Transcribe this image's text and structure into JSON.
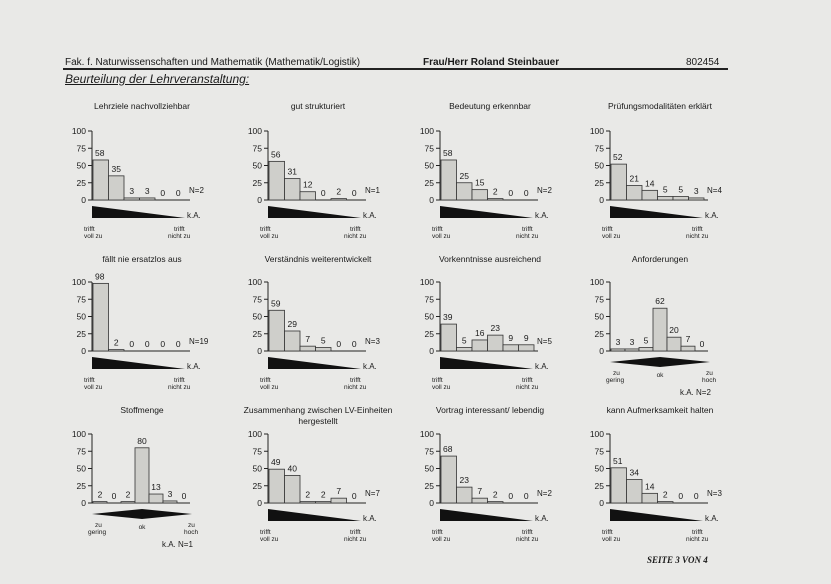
{
  "header": {
    "faculty": "Fak. f. Naturwissenschaften und Mathematik (Mathematik/Logistik)",
    "lecturer": "Frau/Herr Roland Steinbauer",
    "code": "802454",
    "section_title": "Beurteilung der Lehrveranstaltung:"
  },
  "footer": {
    "page": "SEITE 3 VON 4"
  },
  "chart_data": [
    {
      "type": "bar",
      "title": "Lehrziele nachvollziehbar",
      "values": [
        58,
        35,
        3,
        3,
        0,
        0
      ],
      "n_label": "N=2",
      "ka_label": "k.A.",
      "scale": "linear",
      "left_label": [
        "trifft",
        "voll zu"
      ],
      "right_label": [
        "trifft",
        "nicht zu"
      ],
      "ylim": [
        0,
        100
      ],
      "yticks": [
        0,
        25,
        50,
        75,
        100
      ]
    },
    {
      "type": "bar",
      "title": "gut strukturiert",
      "values": [
        56,
        31,
        12,
        0,
        2,
        0
      ],
      "n_label": "N=1",
      "ka_label": "k.A.",
      "scale": "linear",
      "left_label": [
        "trifft",
        "voll zu"
      ],
      "right_label": [
        "trifft",
        "nicht zu"
      ],
      "ylim": [
        0,
        100
      ],
      "yticks": [
        0,
        25,
        50,
        75,
        100
      ]
    },
    {
      "type": "bar",
      "title": "Bedeutung erkennbar",
      "values": [
        58,
        25,
        15,
        2,
        0,
        0
      ],
      "n_label": "N=2",
      "ka_label": "k.A.",
      "scale": "linear",
      "left_label": [
        "trifft",
        "voll zu"
      ],
      "right_label": [
        "trifft",
        "nicht zu"
      ],
      "ylim": [
        0,
        100
      ],
      "yticks": [
        0,
        25,
        50,
        75,
        100
      ]
    },
    {
      "type": "bar",
      "title": "Prüfungsmodalitäten erklärt",
      "values": [
        52,
        21,
        14,
        5,
        5,
        3
      ],
      "n_label": "N=4",
      "ka_label": "k.A.",
      "scale": "linear",
      "left_label": [
        "trifft",
        "voll zu"
      ],
      "right_label": [
        "trifft",
        "nicht zu"
      ],
      "ylim": [
        0,
        100
      ],
      "yticks": [
        0,
        25,
        50,
        75,
        100
      ]
    },
    {
      "type": "bar",
      "title": "fällt nie ersatzlos aus",
      "values": [
        98,
        2,
        0,
        0,
        0,
        0
      ],
      "n_label": "N=19",
      "ka_label": "k.A.",
      "scale": "linear",
      "left_label": [
        "trifft",
        "voll zu"
      ],
      "right_label": [
        "trifft",
        "nicht zu"
      ],
      "ylim": [
        0,
        100
      ],
      "yticks": [
        0,
        25,
        50,
        75,
        100
      ]
    },
    {
      "type": "bar",
      "title": "Verständnis weiterentwickelt",
      "values": [
        59,
        29,
        7,
        5,
        0,
        0
      ],
      "n_label": "N=3",
      "ka_label": "k.A.",
      "scale": "linear",
      "left_label": [
        "trifft",
        "voll zu"
      ],
      "right_label": [
        "trifft",
        "nicht zu"
      ],
      "ylim": [
        0,
        100
      ],
      "yticks": [
        0,
        25,
        50,
        75,
        100
      ]
    },
    {
      "type": "bar",
      "title": "Vorkenntnisse ausreichend",
      "values": [
        39,
        5,
        16,
        23,
        9,
        9
      ],
      "n_label": "N=5",
      "ka_label": "k.A.",
      "scale": "linear",
      "left_label": [
        "trifft",
        "voll zu"
      ],
      "right_label": [
        "trifft",
        "nicht zu"
      ],
      "ylim": [
        0,
        100
      ],
      "yticks": [
        0,
        25,
        50,
        75,
        100
      ]
    },
    {
      "type": "bar",
      "title": "Anforderungen",
      "values": [
        3,
        3,
        5,
        62,
        20,
        7,
        0
      ],
      "n_label": "N=2",
      "ka_label": "k.A.",
      "scale": "diamond",
      "left_label": [
        "zu",
        "gering"
      ],
      "mid_label": "ok",
      "right_label": [
        "zu",
        "hoch"
      ],
      "ylim": [
        0,
        100
      ],
      "yticks": [
        0,
        25,
        50,
        75,
        100
      ]
    },
    {
      "type": "bar",
      "title": "Stoffmenge",
      "values": [
        2,
        0,
        2,
        80,
        13,
        3,
        0
      ],
      "n_label": "N=1",
      "ka_label": "k.A.",
      "scale": "diamond",
      "left_label": [
        "zu",
        "gering"
      ],
      "mid_label": "ok",
      "right_label": [
        "zu",
        "hoch"
      ],
      "ylim": [
        0,
        100
      ],
      "yticks": [
        0,
        25,
        50,
        75,
        100
      ]
    },
    {
      "type": "bar",
      "title": "Zusammenhang zwischen LV-Einheiten hergestellt",
      "values": [
        49,
        40,
        2,
        2,
        7,
        0
      ],
      "n_label": "N=7",
      "ka_label": "k.A.",
      "scale": "linear",
      "left_label": [
        "trifft",
        "voll zu"
      ],
      "right_label": [
        "trifft",
        "nicht zu"
      ],
      "ylim": [
        0,
        100
      ],
      "yticks": [
        0,
        25,
        50,
        75,
        100
      ]
    },
    {
      "type": "bar",
      "title": "Vortrag interessant/ lebendig",
      "values": [
        68,
        23,
        7,
        2,
        0,
        0
      ],
      "n_label": "N=2",
      "ka_label": "k.A.",
      "scale": "linear",
      "left_label": [
        "trifft",
        "voll zu"
      ],
      "right_label": [
        "trifft",
        "nicht zu"
      ],
      "ylim": [
        0,
        100
      ],
      "yticks": [
        0,
        25,
        50,
        75,
        100
      ]
    },
    {
      "type": "bar",
      "title": "kann Aufmerksamkeit halten",
      "values": [
        51,
        34,
        14,
        2,
        0,
        0
      ],
      "n_label": "N=3",
      "ka_label": "k.A.",
      "scale": "linear",
      "left_label": [
        "trifft",
        "voll zu"
      ],
      "right_label": [
        "trifft",
        "nicht zu"
      ],
      "ylim": [
        0,
        100
      ],
      "yticks": [
        0,
        25,
        50,
        75,
        100
      ]
    }
  ]
}
